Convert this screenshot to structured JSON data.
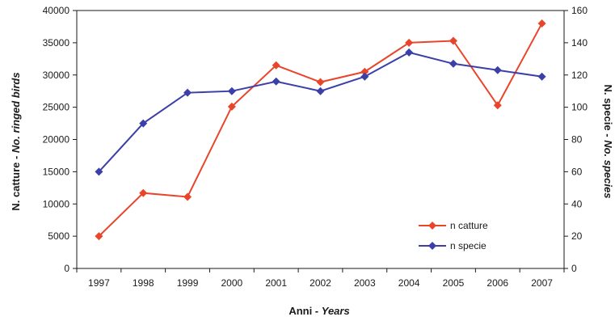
{
  "chart_data": {
    "type": "line",
    "categories": [
      "1997",
      "1998",
      "1999",
      "2000",
      "2001",
      "2002",
      "2003",
      "2004",
      "2005",
      "2006",
      "2007"
    ],
    "series": [
      {
        "name": "n catture",
        "axis": "left",
        "color": "#e8452a",
        "marker": "diamond",
        "values": [
          5000,
          11700,
          11100,
          25100,
          31500,
          28900,
          30500,
          35000,
          35300,
          25300,
          38000
        ]
      },
      {
        "name": "n specie",
        "axis": "right",
        "color": "#3b3fa8",
        "marker": "diamond",
        "values": [
          60,
          90,
          109,
          110,
          116,
          110,
          119,
          134,
          127,
          123,
          119
        ]
      }
    ],
    "xlabel": {
      "main": "Anni - ",
      "italic": "Years"
    },
    "ylabel_left": {
      "main": "N. catture - ",
      "italic": "No. ringed birds"
    },
    "ylabel_right": {
      "main": "N. specie - ",
      "italic": "No. species"
    },
    "ylim_left": [
      0,
      40000
    ],
    "ylim_right": [
      0,
      160
    ],
    "yticks_left": [
      "0",
      "5000",
      "10000",
      "15000",
      "20000",
      "25000",
      "30000",
      "35000",
      "40000"
    ],
    "yticks_right": [
      "0",
      "20",
      "40",
      "60",
      "80",
      "100",
      "120",
      "140",
      "160"
    ],
    "grid": false,
    "legend_position": "bottom-right inside plot"
  }
}
